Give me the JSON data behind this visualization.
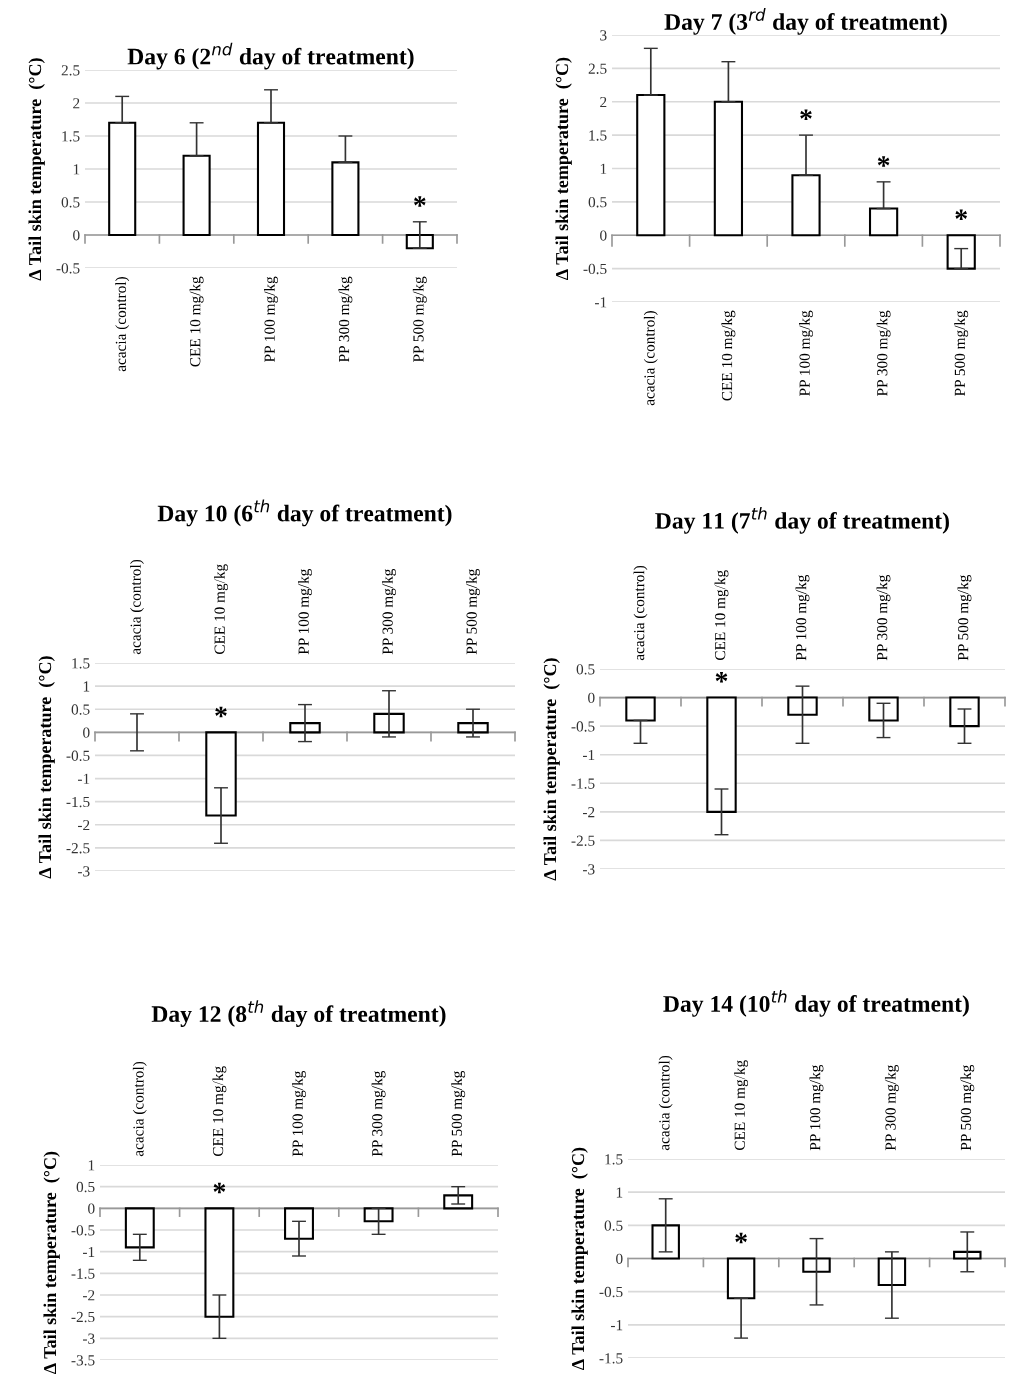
{
  "chart_data": [
    {
      "type": "bar",
      "title": "Day 6 (2$^{nd}$ day of treatment)",
      "ylabel": "∆ Tail skin temperature  (°C)",
      "categories": [
        "acacia (control)",
        "CEE 10 mg/kg",
        "PP 100 mg/kg",
        "PP 300 mg/kg",
        "PP 500 mg/kg"
      ],
      "values": [
        1.7,
        1.2,
        1.7,
        1.1,
        -0.2
      ],
      "errors": [
        [
          1.7,
          2.1
        ],
        [
          1.2,
          1.7
        ],
        [
          1.7,
          2.2
        ],
        [
          1.1,
          1.5
        ],
        [
          -0.2,
          0.2
        ]
      ],
      "color": "#ffffff",
      "ylim": [
        -0.5,
        2.5
      ],
      "yticks": [
        -0.5,
        0,
        0.5,
        1,
        1.5,
        2,
        2.5
      ],
      "grid": "y",
      "annotations": [
        {
          "text": "*",
          "x": "PP 500 mg/kg",
          "y": 0.2
        }
      ]
    },
    {
      "type": "bar",
      "title": "Day 7 (3$^{rd}$ day of treatment)",
      "ylabel": "∆ Tail skin temperature  (°C)",
      "categories": [
        "acacia (control)",
        "CEE 10 mg/kg",
        "PP 100 mg/kg",
        "PP 300 mg/kg",
        "PP 500 mg/kg"
      ],
      "values": [
        2.1,
        2.0,
        0.9,
        0.4,
        -0.5
      ],
      "errors": [
        [
          2.1,
          2.8
        ],
        [
          2.0,
          2.6
        ],
        [
          0.9,
          1.5
        ],
        [
          0.4,
          0.8
        ],
        [
          -0.5,
          -0.2
        ]
      ],
      "color": "#ffffff",
      "ylim": [
        -1,
        3
      ],
      "yticks": [
        -1,
        -0.5,
        0,
        0.5,
        1,
        1.5,
        2,
        2.5,
        3
      ],
      "grid": "y",
      "annotations": [
        {
          "text": "*",
          "x": "PP 100 mg/kg",
          "y": 1.5
        },
        {
          "text": "*",
          "x": "PP 300 mg/kg",
          "y": 0.8
        },
        {
          "text": "*",
          "x": "PP 500 mg/kg",
          "y": 0.0
        }
      ]
    },
    {
      "type": "bar",
      "title": "Day 10 (6$^{th}$ day of treatment)",
      "ylabel": "∆ Tail skin temperature  (°C)",
      "categories": [
        "acacia (control)",
        "CEE 10 mg/kg",
        "PP 100 mg/kg",
        "PP 300 mg/kg",
        "PP 500 mg/kg"
      ],
      "values": [
        0,
        -1.8,
        0.2,
        0.4,
        0.2
      ],
      "errors": [
        [
          -0.4,
          0.4
        ],
        [
          -2.4,
          -1.2
        ],
        [
          -0.2,
          0.6
        ],
        [
          -0.1,
          0.9
        ],
        [
          -0.1,
          0.5
        ]
      ],
      "color": "#ffffff",
      "ylim": [
        -3,
        1.5
      ],
      "yticks": [
        -3,
        -2.5,
        -2,
        -1.5,
        -1,
        -0.5,
        0,
        0.5,
        1,
        1.5
      ],
      "grid": "y",
      "annotations": [
        {
          "text": "*",
          "x": "CEE 10 mg/kg",
          "y": 0
        }
      ]
    },
    {
      "type": "bar",
      "title": "Day 11 (7$^{th}$ day of treatment)",
      "ylabel": "∆ Tail skin temperature  (°C)",
      "categories": [
        "acacia (control)",
        "CEE 10 mg/kg",
        "PP 100 mg/kg",
        "PP 300 mg/kg",
        "PP 500 mg/kg"
      ],
      "values": [
        -0.4,
        -2.0,
        -0.3,
        -0.4,
        -0.5
      ],
      "errors": [
        [
          -0.8,
          -0.4
        ],
        [
          -2.4,
          -1.6
        ],
        [
          -0.8,
          0.2
        ],
        [
          -0.7,
          -0.1
        ],
        [
          -0.8,
          -0.2
        ]
      ],
      "color": "#ffffff",
      "ylim": [
        -3,
        0.5
      ],
      "yticks": [
        -3,
        -2.5,
        -2,
        -1.5,
        -1,
        -0.5,
        0,
        0.5
      ],
      "grid": "y",
      "annotations": [
        {
          "text": "*",
          "x": "CEE 10 mg/kg",
          "y": 0
        }
      ]
    },
    {
      "type": "bar",
      "title": "Day 12 (8$^{th}$ day of treatment)",
      "ylabel": "∆ Tail skin temperature  (°C)",
      "categories": [
        "acacia (control)",
        "CEE 10 mg/kg",
        "PP 100 mg/kg",
        "PP 300 mg/kg",
        "PP 500 mg/kg"
      ],
      "values": [
        -0.9,
        -2.5,
        -0.7,
        -0.3,
        0.3
      ],
      "errors": [
        [
          -1.2,
          -0.6
        ],
        [
          -3.0,
          -2.0
        ],
        [
          -1.1,
          -0.3
        ],
        [
          -0.6,
          0.0
        ],
        [
          0.1,
          0.5
        ]
      ],
      "color": "#ffffff",
      "ylim": [
        -3.5,
        1
      ],
      "yticks": [
        -3.5,
        -3,
        -2.5,
        -2,
        -1.5,
        -1,
        -0.5,
        0,
        0.5,
        1
      ],
      "grid": "y",
      "annotations": [
        {
          "text": "*",
          "x": "CEE 10 mg/kg",
          "y": 0
        }
      ]
    },
    {
      "type": "bar",
      "title": "Day 14 (10$^{th}$ day of treatment)",
      "ylabel": "∆ Tail skin temperature  (°C)",
      "categories": [
        "acacia (control)",
        "CEE 10 mg/kg",
        "PP 100 mg/kg",
        "PP 300 mg/kg",
        "PP 500 mg/kg"
      ],
      "values": [
        0.5,
        -0.6,
        -0.2,
        -0.4,
        0.1
      ],
      "errors": [
        [
          0.1,
          0.9
        ],
        [
          -1.2,
          -0.6
        ],
        [
          -0.7,
          0.3
        ],
        [
          -0.9,
          0.1
        ],
        [
          -0.2,
          0.4
        ]
      ],
      "color": "#ffffff",
      "ylim": [
        -1.5,
        1.5
      ],
      "yticks": [
        -1.5,
        -1,
        -0.5,
        0,
        0.5,
        1,
        1.5
      ],
      "grid": "y",
      "annotations": [
        {
          "text": "*",
          "x": "CEE 10 mg/kg",
          "y": 0
        }
      ]
    }
  ]
}
